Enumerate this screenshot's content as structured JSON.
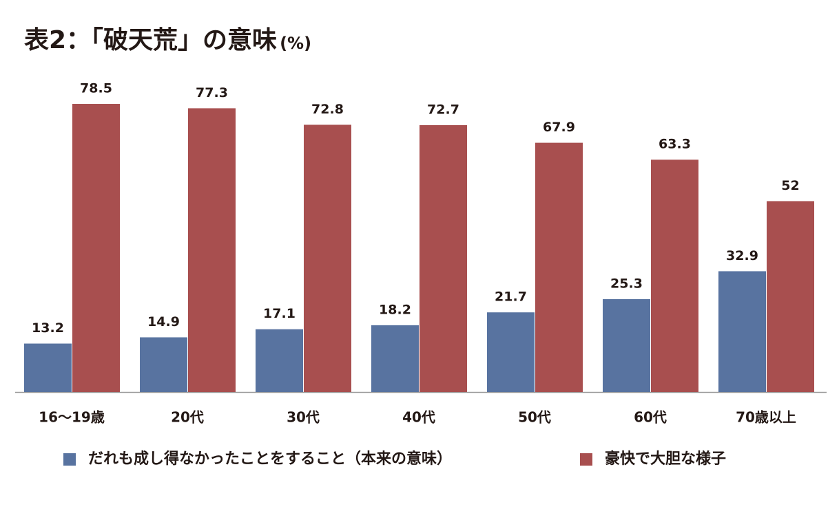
{
  "chart_data": {
    "type": "bar",
    "title": "表2：「破天荒」の意味",
    "unit": "(%)",
    "categories": [
      "16〜19歳",
      "20代",
      "30代",
      "40代",
      "50代",
      "60代",
      "70歳以上"
    ],
    "series": [
      {
        "name": "だれも成し得なかったことをすること（本来の意味）",
        "color": "#5873a0",
        "values": [
          13.2,
          14.9,
          17.1,
          18.2,
          21.7,
          25.3,
          32.9
        ]
      },
      {
        "name": "豪快で大胆な様子",
        "color": "#a84f4f",
        "values": [
          78.5,
          77.3,
          72.8,
          72.7,
          67.9,
          63.3,
          52
        ]
      }
    ],
    "ylim": [
      0,
      80
    ],
    "legend": "bottom"
  }
}
